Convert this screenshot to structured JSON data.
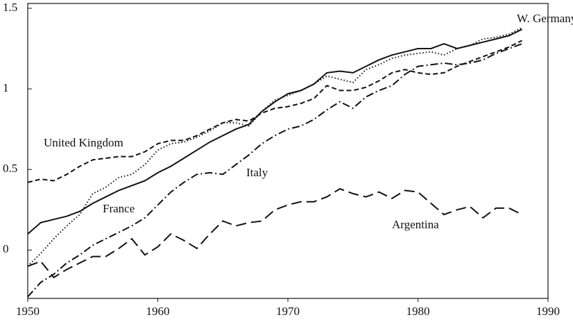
{
  "chart_data": {
    "type": "line",
    "x": [
      1950,
      1951,
      1952,
      1953,
      1954,
      1955,
      1956,
      1957,
      1958,
      1959,
      1960,
      1961,
      1962,
      1963,
      1964,
      1965,
      1966,
      1967,
      1968,
      1969,
      1970,
      1971,
      1972,
      1973,
      1974,
      1975,
      1976,
      1977,
      1978,
      1979,
      1980,
      1981,
      1982,
      1983,
      1984,
      1985,
      1986,
      1987,
      1988
    ],
    "xlim": [
      1950,
      1990
    ],
    "xticks": [
      1950,
      1960,
      1970,
      1980,
      1990
    ],
    "ylim": [
      -0.3,
      1.53
    ],
    "yticks": [
      0,
      0.5,
      1,
      1.5
    ],
    "series": [
      {
        "name": "W. Germany",
        "color": "#111111",
        "style": "dotted",
        "values": [
          -0.1,
          -0.02,
          0.07,
          0.15,
          0.22,
          0.35,
          0.39,
          0.45,
          0.47,
          0.53,
          0.62,
          0.66,
          0.67,
          0.7,
          0.74,
          0.79,
          0.79,
          0.77,
          0.86,
          0.93,
          0.96,
          0.99,
          1.03,
          1.08,
          1.06,
          1.04,
          1.12,
          1.15,
          1.19,
          1.21,
          1.22,
          1.23,
          1.21,
          1.25,
          1.27,
          1.31,
          1.32,
          1.34,
          1.38
        ]
      },
      {
        "name": "United Kingdom",
        "color": "#111111",
        "style": "dashed",
        "values": [
          0.42,
          0.44,
          0.43,
          0.47,
          0.52,
          0.56,
          0.57,
          0.58,
          0.58,
          0.61,
          0.66,
          0.68,
          0.68,
          0.71,
          0.75,
          0.79,
          0.81,
          0.8,
          0.85,
          0.88,
          0.89,
          0.91,
          0.94,
          1.02,
          0.99,
          0.99,
          1.01,
          1.05,
          1.1,
          1.12,
          1.1,
          1.09,
          1.1,
          1.14,
          1.17,
          1.2,
          1.23,
          1.26,
          1.3
        ]
      },
      {
        "name": "Italy",
        "color": "#111111",
        "style": "dashdot",
        "values": [
          -0.29,
          -0.2,
          -0.15,
          -0.08,
          -0.03,
          0.03,
          0.07,
          0.11,
          0.15,
          0.2,
          0.28,
          0.36,
          0.42,
          0.47,
          0.48,
          0.47,
          0.53,
          0.59,
          0.66,
          0.71,
          0.75,
          0.77,
          0.81,
          0.87,
          0.92,
          0.88,
          0.95,
          0.99,
          1.02,
          1.09,
          1.14,
          1.15,
          1.16,
          1.15,
          1.16,
          1.18,
          1.22,
          1.25,
          1.28
        ]
      },
      {
        "name": "France",
        "color": "#111111",
        "style": "solid",
        "values": [
          0.1,
          0.17,
          0.19,
          0.21,
          0.24,
          0.29,
          0.33,
          0.37,
          0.4,
          0.43,
          0.48,
          0.52,
          0.57,
          0.62,
          0.67,
          0.71,
          0.75,
          0.78,
          0.86,
          0.92,
          0.97,
          0.99,
          1.03,
          1.1,
          1.11,
          1.1,
          1.14,
          1.18,
          1.21,
          1.23,
          1.25,
          1.25,
          1.28,
          1.25,
          1.27,
          1.29,
          1.31,
          1.33,
          1.37
        ]
      },
      {
        "name": "Argentina",
        "color": "#111111",
        "style": "longdash",
        "values": [
          -0.1,
          -0.07,
          -0.17,
          -0.12,
          -0.08,
          -0.04,
          -0.04,
          0.01,
          0.07,
          -0.03,
          0.02,
          0.1,
          0.06,
          0.01,
          0.1,
          0.18,
          0.15,
          0.17,
          0.18,
          0.25,
          0.28,
          0.3,
          0.3,
          0.33,
          0.38,
          0.35,
          0.33,
          0.36,
          0.32,
          0.37,
          0.36,
          0.29,
          0.22,
          0.25,
          0.27,
          0.2,
          0.26,
          0.26,
          0.22
        ]
      }
    ]
  }
}
